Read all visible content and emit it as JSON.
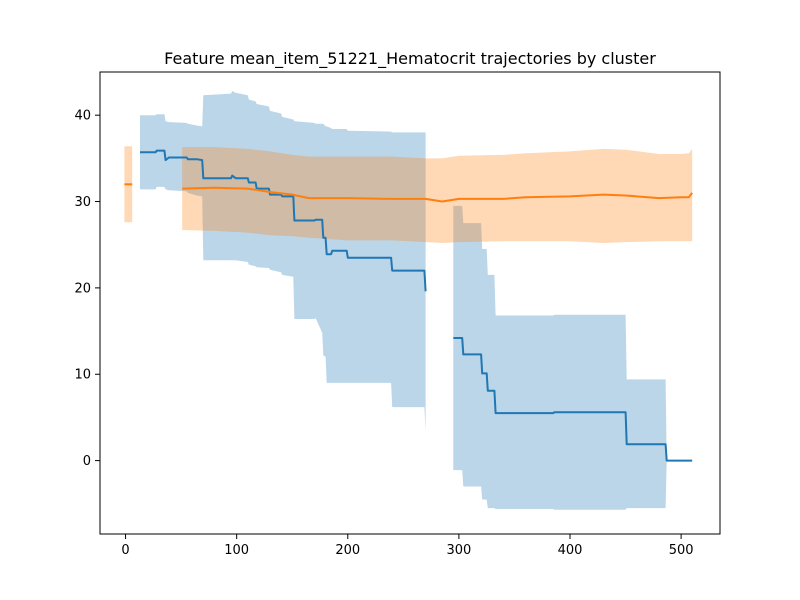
{
  "chart_data": {
    "type": "line",
    "title": "Feature mean_item_51221_Hematocrit trajectories by cluster",
    "xlabel": "",
    "ylabel": "",
    "xlim": [
      -23,
      535
    ],
    "ylim": [
      -8.5,
      45
    ],
    "xticks": [
      0,
      100,
      200,
      300,
      400,
      500
    ],
    "yticks": [
      0,
      10,
      20,
      30,
      40
    ],
    "grid": false,
    "legend": "none",
    "series": [
      {
        "color": "#1f77b4",
        "band_opacity": 0.3,
        "segments": [
          [
            {
              "x": 13,
              "y": 35.7,
              "lo": 31.4,
              "hi": 40.0
            },
            {
              "x": 27,
              "y": 35.7,
              "lo": 31.4,
              "hi": 40.0
            },
            {
              "x": 28,
              "y": 35.9,
              "lo": 31.7,
              "hi": 40.1
            },
            {
              "x": 35,
              "y": 35.9,
              "lo": 31.7,
              "hi": 40.1
            },
            {
              "x": 36,
              "y": 34.8,
              "lo": 31.4,
              "hi": 39.3
            },
            {
              "x": 39,
              "y": 35.1,
              "lo": 31.3,
              "hi": 39.2
            },
            {
              "x": 55,
              "y": 35.1,
              "lo": 31.2,
              "hi": 39.1
            },
            {
              "x": 56,
              "y": 34.9,
              "lo": 31.0,
              "hi": 39.0
            },
            {
              "x": 64,
              "y": 34.9,
              "lo": 30.7,
              "hi": 38.8
            },
            {
              "x": 69,
              "y": 34.8,
              "lo": 30.6,
              "hi": 38.7
            },
            {
              "x": 70,
              "y": 32.7,
              "lo": 23.2,
              "hi": 42.3
            },
            {
              "x": 95,
              "y": 32.7,
              "lo": 23.2,
              "hi": 42.5
            },
            {
              "x": 96,
              "y": 33.0,
              "lo": 23.2,
              "hi": 42.8
            },
            {
              "x": 99,
              "y": 32.7,
              "lo": 23.2,
              "hi": 42.6
            },
            {
              "x": 110,
              "y": 32.7,
              "lo": 23.0,
              "hi": 42.3
            },
            {
              "x": 111,
              "y": 32.2,
              "lo": 22.7,
              "hi": 41.8
            },
            {
              "x": 117,
              "y": 32.2,
              "lo": 22.5,
              "hi": 41.6
            },
            {
              "x": 118,
              "y": 31.5,
              "lo": 22.4,
              "hi": 41.3
            },
            {
              "x": 129,
              "y": 31.5,
              "lo": 22.3,
              "hi": 41.0
            },
            {
              "x": 130,
              "y": 30.8,
              "lo": 22.1,
              "hi": 40.5
            },
            {
              "x": 140,
              "y": 30.8,
              "lo": 21.8,
              "hi": 40.2
            },
            {
              "x": 141,
              "y": 30.6,
              "lo": 21.5,
              "hi": 39.8
            },
            {
              "x": 151,
              "y": 30.6,
              "lo": 21.3,
              "hi": 39.5
            },
            {
              "x": 152,
              "y": 27.8,
              "lo": 16.4,
              "hi": 39.3
            },
            {
              "x": 170,
              "y": 27.8,
              "lo": 16.4,
              "hi": 39.1
            },
            {
              "x": 171,
              "y": 27.9,
              "lo": 16.5,
              "hi": 39.0
            },
            {
              "x": 177,
              "y": 27.9,
              "lo": 14.8,
              "hi": 39.0
            },
            {
              "x": 178,
              "y": 25.8,
              "lo": 12.2,
              "hi": 39.0
            },
            {
              "x": 180,
              "y": 25.8,
              "lo": 12.0,
              "hi": 38.7
            },
            {
              "x": 181,
              "y": 23.9,
              "lo": 9.0,
              "hi": 38.7
            },
            {
              "x": 185,
              "y": 23.9,
              "lo": 9.0,
              "hi": 38.5
            },
            {
              "x": 186,
              "y": 24.3,
              "lo": 9.0,
              "hi": 38.4
            },
            {
              "x": 199,
              "y": 24.3,
              "lo": 9.0,
              "hi": 38.4
            },
            {
              "x": 200,
              "y": 23.5,
              "lo": 9.0,
              "hi": 38.2
            },
            {
              "x": 239,
              "y": 23.5,
              "lo": 9.0,
              "hi": 38.1
            },
            {
              "x": 240,
              "y": 22.0,
              "lo": 6.2,
              "hi": 38.0
            },
            {
              "x": 269,
              "y": 22.0,
              "lo": 6.2,
              "hi": 38.0
            },
            {
              "x": 270,
              "y": 19.6,
              "lo": 3.4,
              "hi": 38.0
            }
          ],
          [
            {
              "x": 295,
              "y": 14.2,
              "lo": -1.1,
              "hi": 29.5
            },
            {
              "x": 303,
              "y": 14.2,
              "lo": -1.1,
              "hi": 29.5
            },
            {
              "x": 304,
              "y": 12.3,
              "lo": -3.0,
              "hi": 27.5
            },
            {
              "x": 320,
              "y": 12.3,
              "lo": -3.0,
              "hi": 27.5
            },
            {
              "x": 321,
              "y": 10.1,
              "lo": -4.5,
              "hi": 24.5
            },
            {
              "x": 325,
              "y": 10.1,
              "lo": -4.5,
              "hi": 24.5
            },
            {
              "x": 326,
              "y": 8.1,
              "lo": -5.5,
              "hi": 21.5
            },
            {
              "x": 332,
              "y": 8.1,
              "lo": -5.5,
              "hi": 21.5
            },
            {
              "x": 333,
              "y": 5.5,
              "lo": -5.6,
              "hi": 16.8
            },
            {
              "x": 385,
              "y": 5.5,
              "lo": -5.6,
              "hi": 16.8
            },
            {
              "x": 386,
              "y": 5.6,
              "lo": -5.7,
              "hi": 16.9
            },
            {
              "x": 450,
              "y": 5.6,
              "lo": -5.7,
              "hi": 16.9
            },
            {
              "x": 451,
              "y": 1.9,
              "lo": -5.5,
              "hi": 9.4
            },
            {
              "x": 486,
              "y": 1.9,
              "lo": -5.5,
              "hi": 9.4
            },
            {
              "x": 487,
              "y": 0.0,
              "lo": 0.0,
              "hi": 0.0
            },
            {
              "x": 510,
              "y": 0.0,
              "lo": 0.0,
              "hi": 0.0
            }
          ]
        ]
      },
      {
        "color": "#ff7f0e",
        "band_opacity": 0.3,
        "segments": [
          [
            {
              "x": -1,
              "y": 32.0,
              "lo": 27.6,
              "hi": 36.4
            },
            {
              "x": 6,
              "y": 32.0,
              "lo": 27.6,
              "hi": 36.4
            }
          ],
          [
            {
              "x": 51,
              "y": 31.5,
              "lo": 26.7,
              "hi": 36.3
            },
            {
              "x": 80,
              "y": 31.6,
              "lo": 26.6,
              "hi": 36.3
            },
            {
              "x": 110,
              "y": 31.5,
              "lo": 26.4,
              "hi": 36.1
            },
            {
              "x": 130,
              "y": 31.1,
              "lo": 26.1,
              "hi": 35.8
            },
            {
              "x": 150,
              "y": 30.8,
              "lo": 26.0,
              "hi": 35.4
            },
            {
              "x": 165,
              "y": 30.4,
              "lo": 25.8,
              "hi": 35.2
            },
            {
              "x": 200,
              "y": 30.4,
              "lo": 25.5,
              "hi": 35.2
            },
            {
              "x": 240,
              "y": 30.3,
              "lo": 25.5,
              "hi": 35.2
            },
            {
              "x": 270,
              "y": 30.3,
              "lo": 25.3,
              "hi": 35.0
            },
            {
              "x": 285,
              "y": 30.0,
              "lo": 25.2,
              "hi": 35.0
            },
            {
              "x": 300,
              "y": 30.3,
              "lo": 25.3,
              "hi": 35.3
            },
            {
              "x": 340,
              "y": 30.3,
              "lo": 25.4,
              "hi": 35.4
            },
            {
              "x": 360,
              "y": 30.5,
              "lo": 25.4,
              "hi": 35.6
            },
            {
              "x": 400,
              "y": 30.6,
              "lo": 25.4,
              "hi": 35.8
            },
            {
              "x": 430,
              "y": 30.8,
              "lo": 25.2,
              "hi": 36.1
            },
            {
              "x": 450,
              "y": 30.7,
              "lo": 25.3,
              "hi": 36.0
            },
            {
              "x": 480,
              "y": 30.4,
              "lo": 25.4,
              "hi": 35.5
            },
            {
              "x": 500,
              "y": 30.5,
              "lo": 25.4,
              "hi": 35.5
            },
            {
              "x": 507,
              "y": 30.5,
              "lo": 25.4,
              "hi": 35.6
            },
            {
              "x": 510,
              "y": 31.0,
              "lo": 25.4,
              "hi": 36.1
            }
          ]
        ]
      }
    ]
  }
}
